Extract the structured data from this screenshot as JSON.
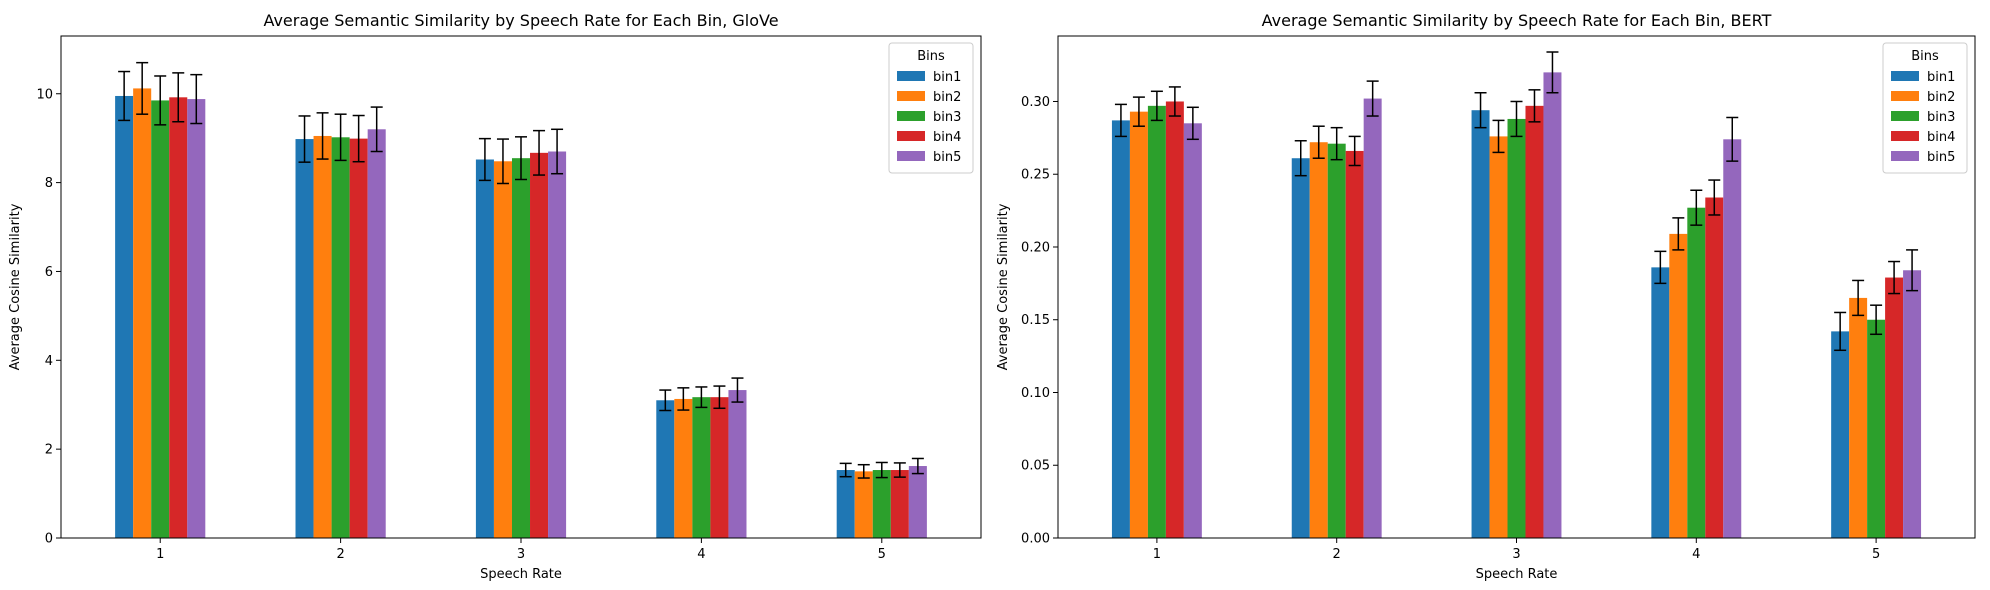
{
  "chart_data": [
    {
      "type": "bar",
      "title": "Average Semantic Similarity by Speech Rate for Each Bin, GloVe",
      "xlabel": "Speech Rate",
      "ylabel": "Average Cosine Similarity",
      "categories": [
        "1",
        "2",
        "3",
        "4",
        "5"
      ],
      "ylim": [
        0,
        11.3
      ],
      "yticks": [
        0,
        2,
        4,
        6,
        8,
        10
      ],
      "ytick_labels": [
        "0",
        "2",
        "4",
        "6",
        "8",
        "10"
      ],
      "legend_title": "Bins",
      "legend_position": "top-right",
      "grid": false,
      "series": [
        {
          "name": "bin1",
          "color": "#1f77b4",
          "values": [
            9.95,
            8.98,
            8.52,
            3.1,
            1.53
          ],
          "errors": [
            0.55,
            0.52,
            0.47,
            0.23,
            0.15
          ]
        },
        {
          "name": "bin2",
          "color": "#ff7f0e",
          "values": [
            10.12,
            9.05,
            8.48,
            3.13,
            1.5
          ],
          "errors": [
            0.58,
            0.52,
            0.5,
            0.25,
            0.15
          ]
        },
        {
          "name": "bin3",
          "color": "#2ca02c",
          "values": [
            9.85,
            9.02,
            8.55,
            3.17,
            1.53
          ],
          "errors": [
            0.55,
            0.52,
            0.48,
            0.23,
            0.17
          ]
        },
        {
          "name": "bin4",
          "color": "#d62728",
          "values": [
            9.92,
            8.99,
            8.67,
            3.17,
            1.53
          ],
          "errors": [
            0.55,
            0.52,
            0.5,
            0.25,
            0.16
          ]
        },
        {
          "name": "bin5",
          "color": "#9467bd",
          "values": [
            9.88,
            9.2,
            8.7,
            3.33,
            1.62
          ],
          "errors": [
            0.55,
            0.5,
            0.5,
            0.27,
            0.17
          ]
        }
      ]
    },
    {
      "type": "bar",
      "title": "Average Semantic Similarity by Speech Rate for Each Bin, BERT",
      "xlabel": "Speech Rate",
      "ylabel": "Average Cosine Similarity",
      "categories": [
        "1",
        "2",
        "3",
        "4",
        "5"
      ],
      "ylim": [
        0,
        0.345
      ],
      "yticks": [
        0,
        0.05,
        0.1,
        0.15,
        0.2,
        0.25,
        0.3
      ],
      "ytick_labels": [
        "0.00",
        "0.05",
        "0.10",
        "0.15",
        "0.20",
        "0.25",
        "0.30"
      ],
      "legend_title": "Bins",
      "legend_position": "top-right",
      "grid": false,
      "series": [
        {
          "name": "bin1",
          "color": "#1f77b4",
          "values": [
            0.287,
            0.261,
            0.294,
            0.186,
            0.142
          ],
          "errors": [
            0.011,
            0.012,
            0.012,
            0.011,
            0.013
          ]
        },
        {
          "name": "bin2",
          "color": "#ff7f0e",
          "values": [
            0.293,
            0.272,
            0.276,
            0.209,
            0.165
          ],
          "errors": [
            0.01,
            0.011,
            0.011,
            0.011,
            0.012
          ]
        },
        {
          "name": "bin3",
          "color": "#2ca02c",
          "values": [
            0.297,
            0.271,
            0.288,
            0.227,
            0.15
          ],
          "errors": [
            0.01,
            0.011,
            0.012,
            0.012,
            0.01
          ]
        },
        {
          "name": "bin4",
          "color": "#d62728",
          "values": [
            0.3,
            0.266,
            0.297,
            0.234,
            0.179
          ],
          "errors": [
            0.01,
            0.01,
            0.011,
            0.012,
            0.011
          ]
        },
        {
          "name": "bin5",
          "color": "#9467bd",
          "values": [
            0.285,
            0.302,
            0.32,
            0.274,
            0.184
          ],
          "errors": [
            0.011,
            0.012,
            0.014,
            0.015,
            0.014
          ]
        }
      ]
    }
  ]
}
